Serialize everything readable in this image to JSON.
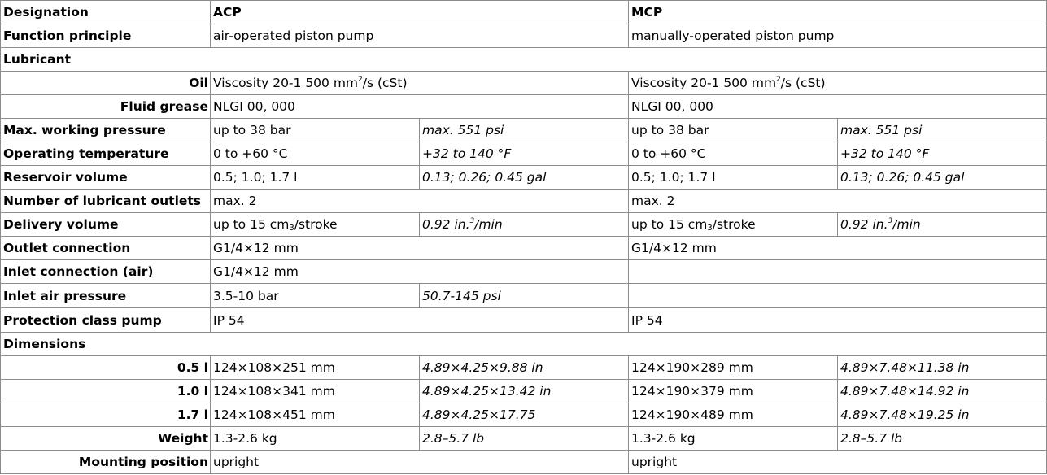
{
  "header": {
    "designation": "Designation",
    "acp": "ACP",
    "mcp": "MCP"
  },
  "rows": {
    "function": {
      "label": "Function principle",
      "acp": "air-operated piston pump",
      "mcp": "manually-operated piston pump"
    },
    "lubricant": {
      "label": "Lubricant"
    },
    "oil": {
      "label": "Oil",
      "acp_pre": "Viscosity 20-1 500 mm",
      "acp_sup": "2",
      "acp_post": "/s (cSt)",
      "mcp_pre": "Viscosity 20-1 500 mm",
      "mcp_sup": "2",
      "mcp_post": "/s (cSt)"
    },
    "grease": {
      "label": "Fluid grease",
      "acp": "NLGI 00, 000",
      "mcp": "NLGI 00, 000"
    },
    "pressure": {
      "label": "Max. working pressure",
      "acp_metric": "up to 38 bar",
      "acp_imperial": "max. 551 psi",
      "mcp_metric": "up to 38 bar",
      "mcp_imperial": "max. 551 psi"
    },
    "temperature": {
      "label": "Operating temperature",
      "acp_metric": "0 to +60 °C",
      "acp_imperial": "+32 to 140 °F",
      "mcp_metric": "0 to +60 °C",
      "mcp_imperial": "+32 to 140 °F"
    },
    "reservoir": {
      "label": "Reservoir volume",
      "acp_metric": "0.5; 1.0; 1.7 l",
      "acp_imperial": "0.13; 0.26; 0.45 gal",
      "mcp_metric": "0.5; 1.0; 1.7 l",
      "mcp_imperial": "0.13; 0.26; 0.45 gal"
    },
    "outlets": {
      "label": "Number of lubricant outlets",
      "acp": "max. 2",
      "mcp": "max. 2"
    },
    "delivery": {
      "label": "Delivery volume",
      "acp_pre": "up to 15 cm",
      "acp_sub": "3",
      "acp_post": "/stroke",
      "acp_imp_pre": "0.92 in.",
      "acp_imp_sup": "3",
      "acp_imp_post": "/min",
      "mcp_pre": "up to 15 cm",
      "mcp_sub": "3",
      "mcp_post": "/stroke",
      "mcp_imp_pre": "0.92 in.",
      "mcp_imp_sup": "3",
      "mcp_imp_post": "/min"
    },
    "outlet_conn": {
      "label": "Outlet connection",
      "acp": "G1/4×12 mm",
      "mcp": "G1/4×12 mm"
    },
    "inlet_conn": {
      "label": "Inlet connection (air)",
      "acp": "G1/4×12 mm",
      "mcp": ""
    },
    "air_pressure": {
      "label": "Inlet air pressure",
      "acp_metric": "3.5-10 bar",
      "acp_imperial": "50.7-145 psi",
      "mcp": ""
    },
    "protection": {
      "label": "Protection class pump",
      "acp": "IP 54",
      "mcp": "IP 54"
    },
    "dimensions": {
      "label": "Dimensions"
    },
    "dim_05": {
      "label": "0.5 l",
      "acp_metric": "124×108×251 mm",
      "acp_imperial": "4.89×4.25×9.88 in",
      "mcp_metric": "124×190×289 mm",
      "mcp_imperial": "4.89×7.48×11.38 in"
    },
    "dim_10": {
      "label": "1.0 l",
      "acp_metric": "124×108×341 mm",
      "acp_imperial": "4.89×4.25×13.42 in",
      "mcp_metric": "124×190×379 mm",
      "mcp_imperial": "4.89×7.48×14.92 in"
    },
    "dim_17": {
      "label": "1.7 l",
      "acp_metric": "124×108×451 mm",
      "acp_imperial": "4.89×4.25×17.75",
      "mcp_metric": "124×190×489 mm",
      "mcp_imperial": "4.89×7.48×19.25 in"
    },
    "weight": {
      "label": "Weight",
      "acp_metric": "1.3-2.6 kg",
      "acp_imperial": "2.8–5.7 lb",
      "mcp_metric": "1.3-2.6 kg",
      "mcp_imperial": "2.8–5.7 lb"
    },
    "mounting": {
      "label": "Mounting position",
      "acp": "upright",
      "mcp": "upright"
    }
  }
}
